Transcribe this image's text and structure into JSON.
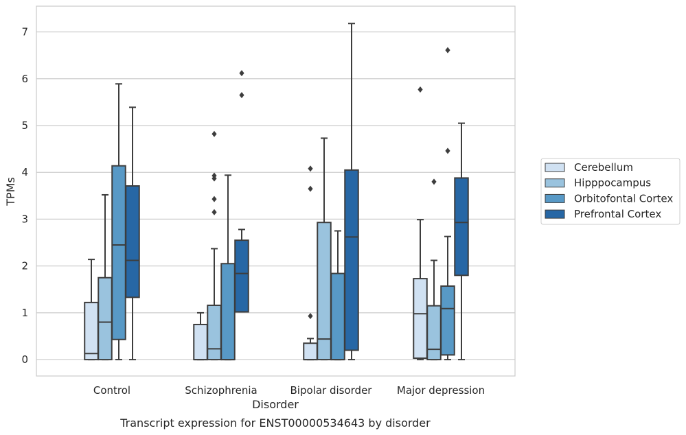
{
  "chart_data": {
    "type": "boxplot",
    "title": "Transcript expression for ENST00000534643 by disorder",
    "xlabel": "Disorder",
    "ylabel": "TPMs",
    "categories": [
      "Control",
      "Schizophrenia",
      "Bipolar disorder",
      "Major depression"
    ],
    "yticks": [
      0,
      1,
      2,
      3,
      4,
      5,
      6,
      7
    ],
    "ylim": [
      -0.35,
      7.55
    ],
    "grid": "horizontal",
    "legend_position": "right",
    "series": [
      {
        "name": "Cerebellum",
        "color": "#d0e1f2",
        "boxes": [
          {
            "whislo": 0.0,
            "q1": 0.0,
            "med": 0.13,
            "q3": 1.22,
            "whishi": 2.14,
            "fliers": []
          },
          {
            "whislo": 0.0,
            "q1": 0.0,
            "med": 0.0,
            "q3": 0.75,
            "whishi": 1.0,
            "fliers": []
          },
          {
            "whislo": 0.0,
            "q1": 0.0,
            "med": 0.0,
            "q3": 0.35,
            "whishi": 0.45,
            "fliers": [
              0.93,
              3.65,
              4.08
            ]
          },
          {
            "whislo": 0.0,
            "q1": 0.03,
            "med": 0.98,
            "q3": 1.73,
            "whishi": 2.99,
            "fliers": [
              5.77
            ]
          }
        ]
      },
      {
        "name": "Hipppocampus",
        "color": "#9ac3de",
        "boxes": [
          {
            "whislo": 0.0,
            "q1": 0.0,
            "med": 0.8,
            "q3": 1.75,
            "whishi": 3.52,
            "fliers": []
          },
          {
            "whislo": 0.0,
            "q1": 0.0,
            "med": 0.23,
            "q3": 1.16,
            "whishi": 2.37,
            "fliers": [
              3.15,
              3.43,
              3.87,
              3.93,
              4.82
            ]
          },
          {
            "whislo": 0.0,
            "q1": 0.0,
            "med": 0.44,
            "q3": 2.93,
            "whishi": 4.73,
            "fliers": []
          },
          {
            "whislo": 0.0,
            "q1": 0.0,
            "med": 0.22,
            "q3": 1.15,
            "whishi": 2.12,
            "fliers": [
              3.8
            ]
          }
        ]
      },
      {
        "name": "Orbitofontal Cortex",
        "color": "#5899c6",
        "boxes": [
          {
            "whislo": 0.0,
            "q1": 0.43,
            "med": 2.45,
            "q3": 4.14,
            "whishi": 5.89,
            "fliers": []
          },
          {
            "whislo": 0.0,
            "q1": 0.0,
            "med": 0.0,
            "q3": 2.05,
            "whishi": 3.94,
            "fliers": []
          },
          {
            "whislo": 0.0,
            "q1": 0.0,
            "med": 0.0,
            "q3": 1.84,
            "whishi": 2.75,
            "fliers": []
          },
          {
            "whislo": 0.0,
            "q1": 0.1,
            "med": 1.09,
            "q3": 1.57,
            "whishi": 2.63,
            "fliers": [
              4.46,
              6.61
            ]
          }
        ]
      },
      {
        "name": "Prefrontal Cortex",
        "color": "#2767a5",
        "boxes": [
          {
            "whislo": 0.0,
            "q1": 1.33,
            "med": 2.12,
            "q3": 3.71,
            "whishi": 5.39,
            "fliers": []
          },
          {
            "whislo": 1.02,
            "q1": 1.02,
            "med": 1.84,
            "q3": 2.55,
            "whishi": 2.78,
            "fliers": [
              5.65,
              6.12
            ]
          },
          {
            "whislo": 0.0,
            "q1": 0.2,
            "med": 2.62,
            "q3": 4.05,
            "whishi": 7.18,
            "fliers": []
          },
          {
            "whislo": 0.0,
            "q1": 1.8,
            "med": 2.93,
            "q3": 3.88,
            "whishi": 5.05,
            "fliers": []
          }
        ]
      }
    ]
  }
}
